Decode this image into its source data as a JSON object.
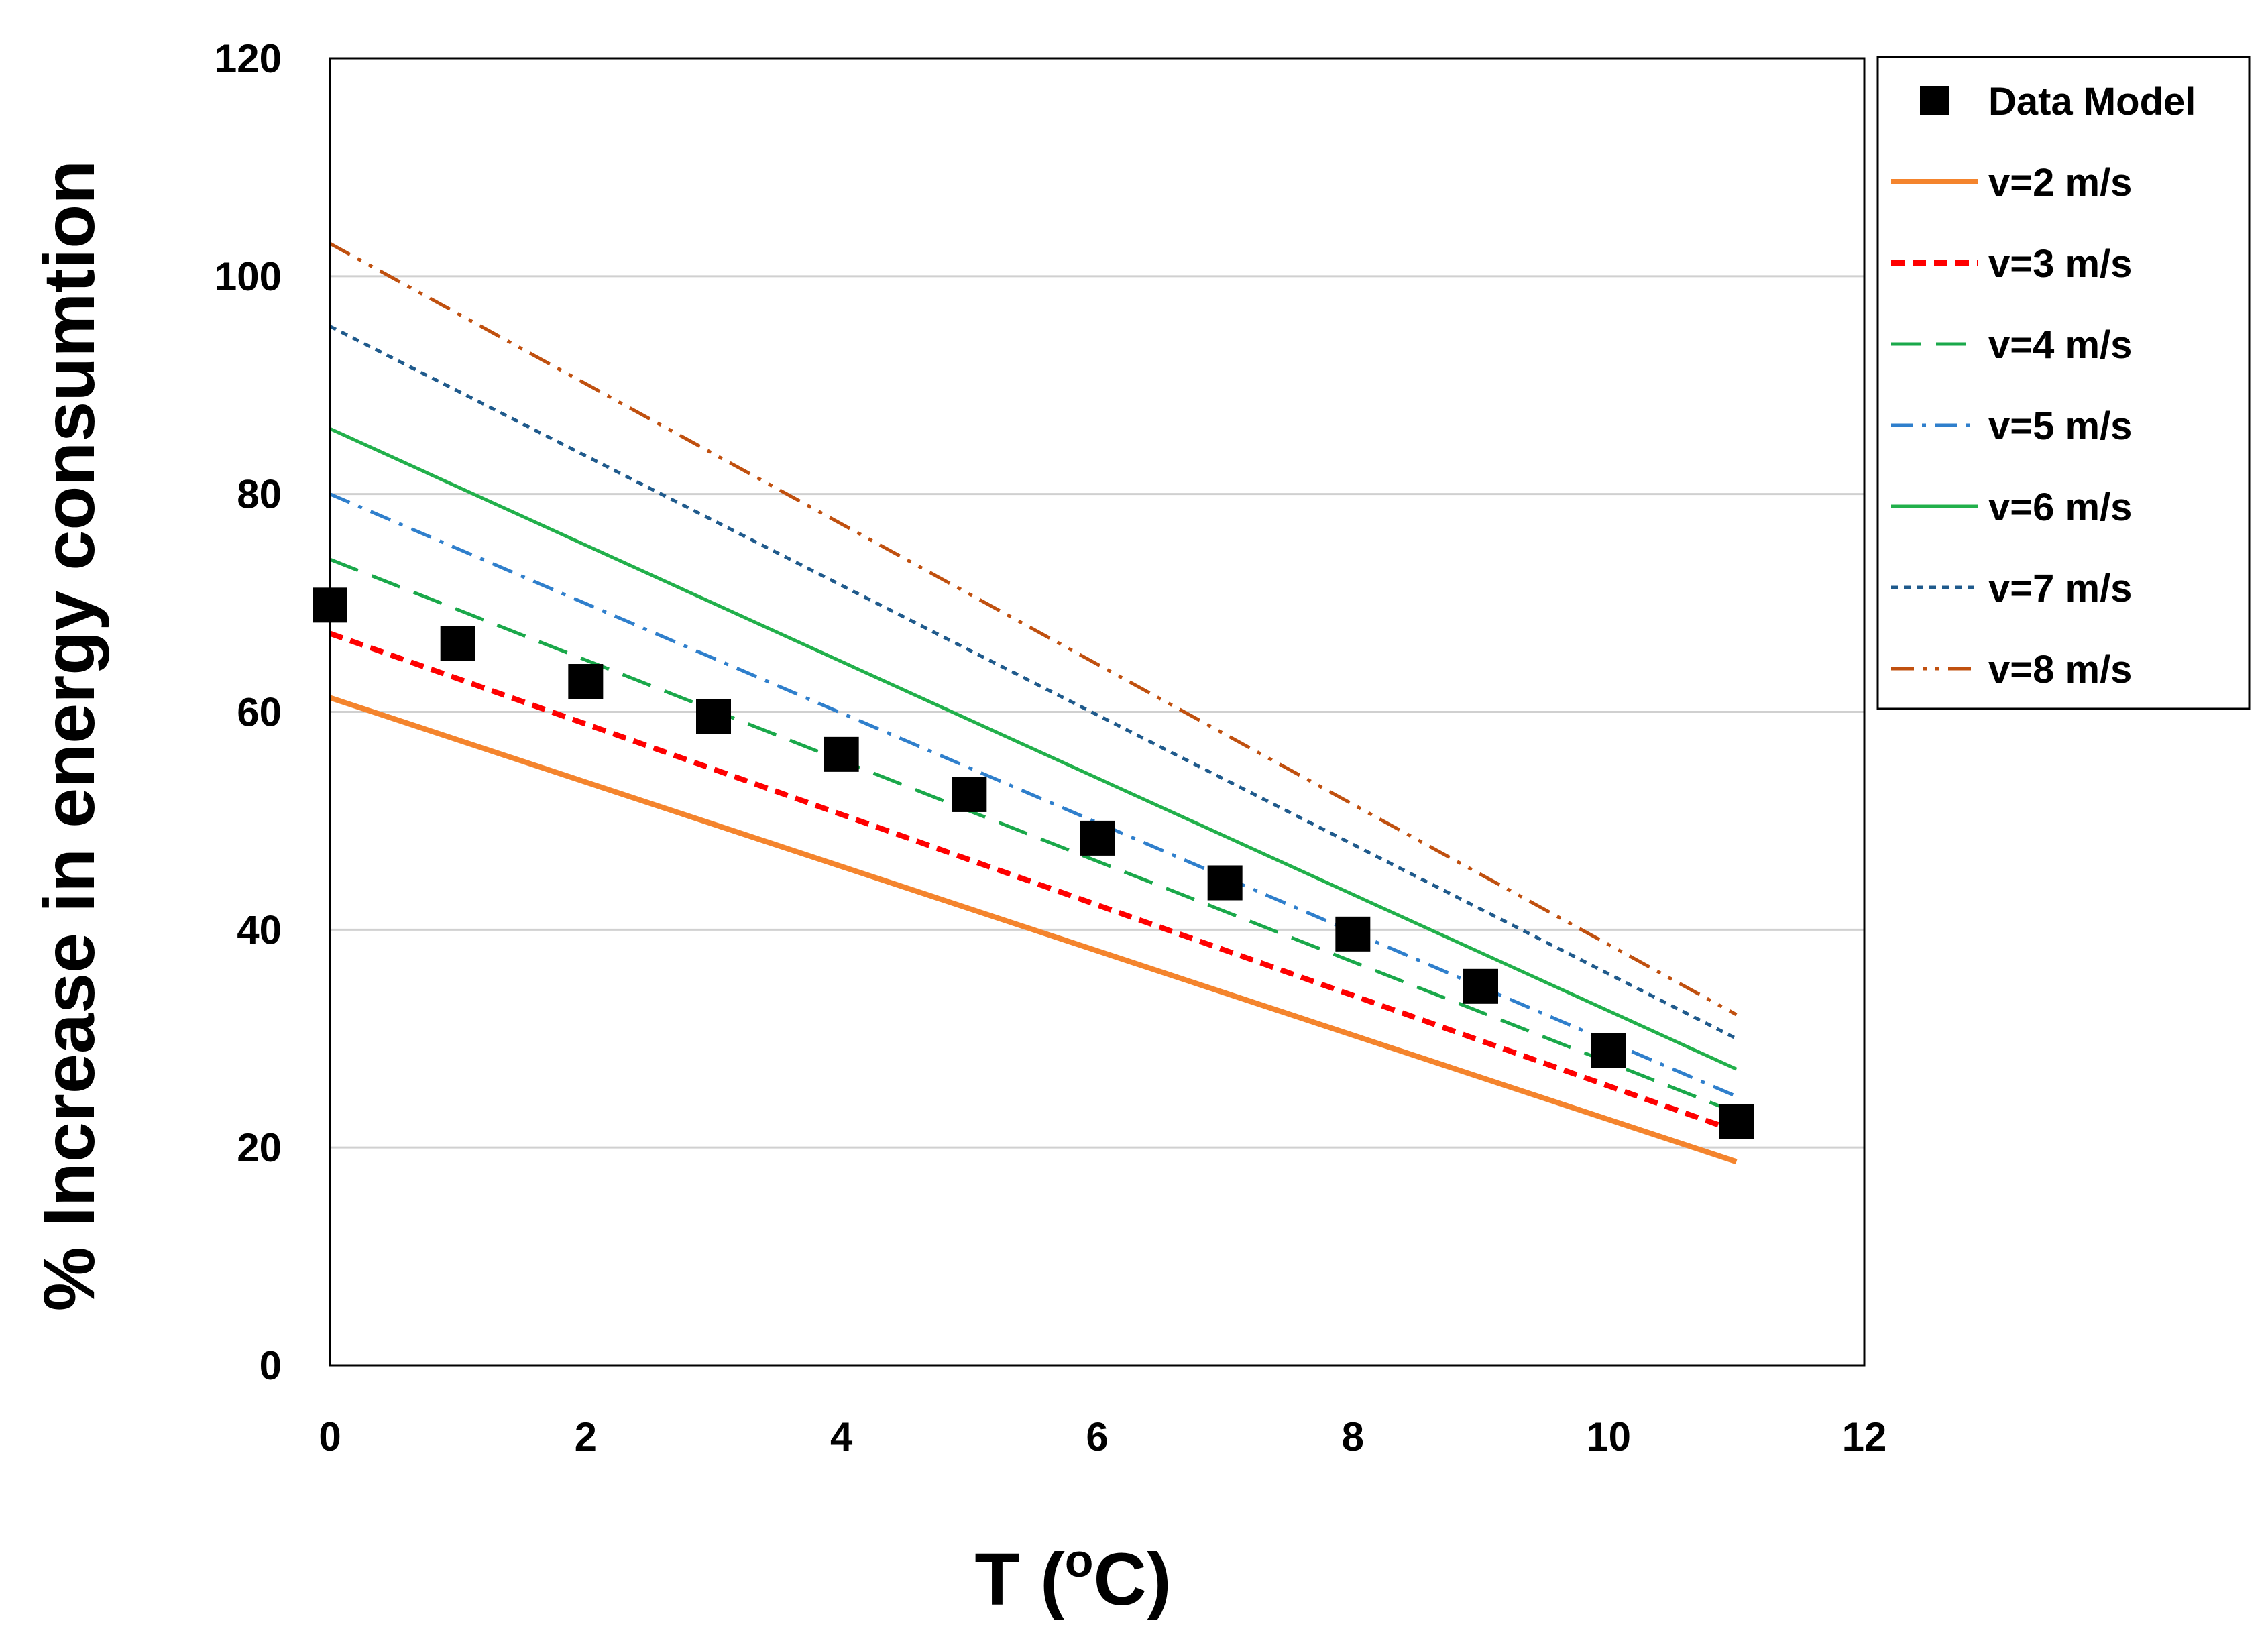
{
  "chart_data": {
    "type": "line",
    "title": "",
    "xlabel_main": "T (",
    "xlabel_sup": "o",
    "xlabel_end": "C)",
    "ylabel": "% Increase in energy consumtion",
    "xlim": [
      0,
      12
    ],
    "ylim": [
      0,
      120
    ],
    "xticks": [
      0,
      2,
      4,
      6,
      8,
      10,
      12
    ],
    "yticks": [
      0,
      20,
      40,
      60,
      80,
      100,
      120
    ],
    "grid": "horizontal",
    "legend_position": "right",
    "data_series": {
      "name": "Data Model",
      "marker": "square",
      "color": "#000000",
      "x": [
        0,
        1,
        2,
        3,
        4,
        5,
        6,
        7,
        8,
        9,
        10,
        11
      ],
      "y": [
        69.8,
        66.3,
        62.8,
        59.6,
        56.1,
        52.4,
        48.4,
        44.3,
        39.6,
        34.8,
        28.9,
        22.4
      ]
    },
    "series": [
      {
        "name": "v=2 m/s",
        "color": "#F4842D",
        "dash": "solid",
        "width": 8,
        "x": [
          0,
          11
        ],
        "y": [
          61.3,
          18.7
        ]
      },
      {
        "name": "v=3 m/s",
        "color": "#FF0000",
        "dash": "short-dash",
        "width": 8,
        "x": [
          0,
          11
        ],
        "y": [
          67.2,
          21.5
        ]
      },
      {
        "name": "v=4 m/s",
        "color": "#1AA84A",
        "dash": "long-dash",
        "width": 5,
        "x": [
          0,
          11
        ],
        "y": [
          74.0,
          23.2
        ]
      },
      {
        "name": "v=5 m/s",
        "color": "#2F7FCC",
        "dash": "dash-dot",
        "width": 5,
        "x": [
          0,
          11
        ],
        "y": [
          80.0,
          24.7
        ]
      },
      {
        "name": "v=6 m/s",
        "color": "#22B04B",
        "dash": "solid",
        "width": 5,
        "x": [
          0,
          11
        ],
        "y": [
          86.0,
          27.2
        ]
      },
      {
        "name": "v=7 m/s",
        "color": "#1F5A8C",
        "dash": "dot",
        "width": 5,
        "x": [
          0,
          11
        ],
        "y": [
          95.4,
          30.0
        ]
      },
      {
        "name": "v=8 m/s",
        "color": "#C0500F",
        "dash": "dash-dot-dot",
        "width": 5,
        "x": [
          0,
          11
        ],
        "y": [
          103.0,
          32.2
        ]
      }
    ]
  }
}
